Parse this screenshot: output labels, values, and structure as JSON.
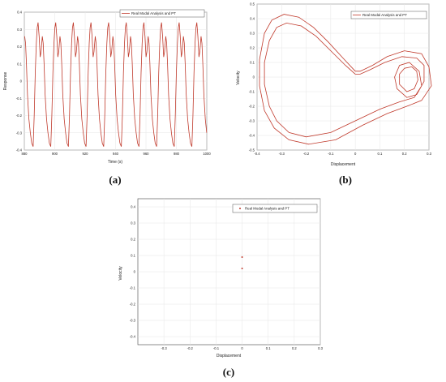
{
  "chart_data": [
    {
      "panel": "(a)",
      "type": "line",
      "xlabel": "Time (s)",
      "ylabel": "Response",
      "xlim": [
        880,
        1000
      ],
      "ylim": [
        -0.4,
        0.4
      ],
      "xticks": [
        880,
        900,
        920,
        940,
        960,
        980,
        1000
      ],
      "yticks": [
        -0.4,
        -0.3,
        -0.2,
        -0.1,
        0,
        0.1,
        0.2,
        0.3,
        0.4
      ],
      "grid": true,
      "legend": "top-right",
      "series": [
        {
          "name": "Real Modal Analysis and PT",
          "color": "#c0392b",
          "period": 11.6,
          "phase": 885.8,
          "waveform": [
            [
              0.0,
              -0.38
            ],
            [
              0.06,
              -0.2
            ],
            [
              0.12,
              0.05
            ],
            [
              0.18,
              0.22
            ],
            [
              0.23,
              0.31
            ],
            [
              0.28,
              0.34
            ],
            [
              0.34,
              0.26
            ],
            [
              0.4,
              0.14
            ],
            [
              0.45,
              0.17
            ],
            [
              0.52,
              0.26
            ],
            [
              0.57,
              0.22
            ],
            [
              0.62,
              0.1
            ],
            [
              0.68,
              -0.08
            ],
            [
              0.76,
              -0.22
            ],
            [
              0.84,
              -0.3
            ],
            [
              0.92,
              -0.36
            ],
            [
              1.0,
              -0.38
            ]
          ]
        }
      ]
    },
    {
      "panel": "(b)",
      "type": "line",
      "xlabel": "Displacement",
      "ylabel": "Velocity",
      "xlim": [
        -0.4,
        0.3
      ],
      "ylim": [
        -0.5,
        0.5
      ],
      "xticks": [
        -0.4,
        -0.3,
        -0.2,
        -0.1,
        0,
        0.1,
        0.2,
        0.3
      ],
      "yticks": [
        -0.5,
        -0.4,
        -0.3,
        -0.2,
        -0.1,
        0,
        0.1,
        0.2,
        0.3,
        0.4,
        0.5
      ],
      "grid": true,
      "legend": "top-right",
      "series": [
        {
          "name": "Real Modal Analysis and PT",
          "color": "#c0392b",
          "points": [
            [
              0,
              0.02
            ],
            [
              -0.04,
              0.08
            ],
            [
              -0.1,
              0.18
            ],
            [
              -0.16,
              0.28
            ],
            [
              -0.22,
              0.35
            ],
            [
              -0.28,
              0.37
            ],
            [
              -0.32,
              0.34
            ],
            [
              -0.35,
              0.25
            ],
            [
              -0.37,
              0.1
            ],
            [
              -0.37,
              -0.05
            ],
            [
              -0.35,
              -0.2
            ],
            [
              -0.32,
              -0.3
            ],
            [
              -0.27,
              -0.38
            ],
            [
              -0.2,
              -0.41
            ],
            [
              -0.1,
              -0.38
            ],
            [
              0.0,
              -0.3
            ],
            [
              0.1,
              -0.22
            ],
            [
              0.18,
              -0.17
            ],
            [
              0.24,
              -0.14
            ],
            [
              0.27,
              -0.06
            ],
            [
              0.26,
              0.04
            ],
            [
              0.22,
              0.1
            ],
            [
              0.18,
              0.08
            ],
            [
              0.16,
              0.0
            ],
            [
              0.17,
              -0.08
            ],
            [
              0.21,
              -0.14
            ],
            [
              0.25,
              -0.12
            ],
            [
              0.28,
              -0.03
            ],
            [
              0.28,
              0.08
            ],
            [
              0.25,
              0.13
            ],
            [
              0.19,
              0.14
            ],
            [
              0.12,
              0.1
            ],
            [
              0.06,
              0.05
            ],
            [
              0.02,
              0.02
            ],
            [
              0,
              0.02
            ]
          ]
        },
        {
          "name": "",
          "color": "#c0392b",
          "points": [
            [
              0,
              0.04
            ],
            [
              -0.05,
              0.13
            ],
            [
              -0.11,
              0.24
            ],
            [
              -0.17,
              0.34
            ],
            [
              -0.23,
              0.41
            ],
            [
              -0.29,
              0.43
            ],
            [
              -0.34,
              0.39
            ],
            [
              -0.37,
              0.3
            ],
            [
              -0.39,
              0.12
            ],
            [
              -0.39,
              -0.06
            ],
            [
              -0.37,
              -0.23
            ],
            [
              -0.33,
              -0.35
            ],
            [
              -0.27,
              -0.43
            ],
            [
              -0.19,
              -0.46
            ],
            [
              -0.08,
              -0.43
            ],
            [
              0.03,
              -0.33
            ],
            [
              0.13,
              -0.25
            ],
            [
              0.21,
              -0.2
            ],
            [
              0.27,
              -0.16
            ],
            [
              0.31,
              -0.06
            ],
            [
              0.3,
              0.07
            ],
            [
              0.27,
              0.16
            ],
            [
              0.2,
              0.18
            ],
            [
              0.13,
              0.14
            ],
            [
              0.07,
              0.08
            ],
            [
              0.02,
              0.04
            ],
            [
              0,
              0.04
            ]
          ]
        },
        {
          "name": "",
          "color": "#c0392b",
          "points": [
            [
              0.2,
              0.06
            ],
            [
              0.18,
              0.02
            ],
            [
              0.18,
              -0.05
            ],
            [
              0.21,
              -0.1
            ],
            [
              0.24,
              -0.08
            ],
            [
              0.255,
              -0.02
            ],
            [
              0.25,
              0.04
            ],
            [
              0.23,
              0.07
            ],
            [
              0.2,
              0.06
            ]
          ]
        }
      ]
    },
    {
      "panel": "(c)",
      "type": "scatter",
      "xlabel": "Displacement",
      "ylabel": "Velocity",
      "xlim": [
        -0.4,
        0.3
      ],
      "ylim": [
        -0.45,
        0.45
      ],
      "xticks": [
        -0.3,
        -0.2,
        -0.1,
        0,
        0.1,
        0.2,
        0.3
      ],
      "yticks": [
        -0.4,
        -0.3,
        -0.2,
        -0.1,
        0,
        0.1,
        0.2,
        0.3,
        0.4
      ],
      "grid": true,
      "legend": "top-right",
      "series": [
        {
          "name": "Real Modal Analysis and PT",
          "color": "#c0392b",
          "points": [
            [
              0.0,
              0.09
            ],
            [
              0.0,
              0.02
            ]
          ]
        }
      ]
    }
  ]
}
